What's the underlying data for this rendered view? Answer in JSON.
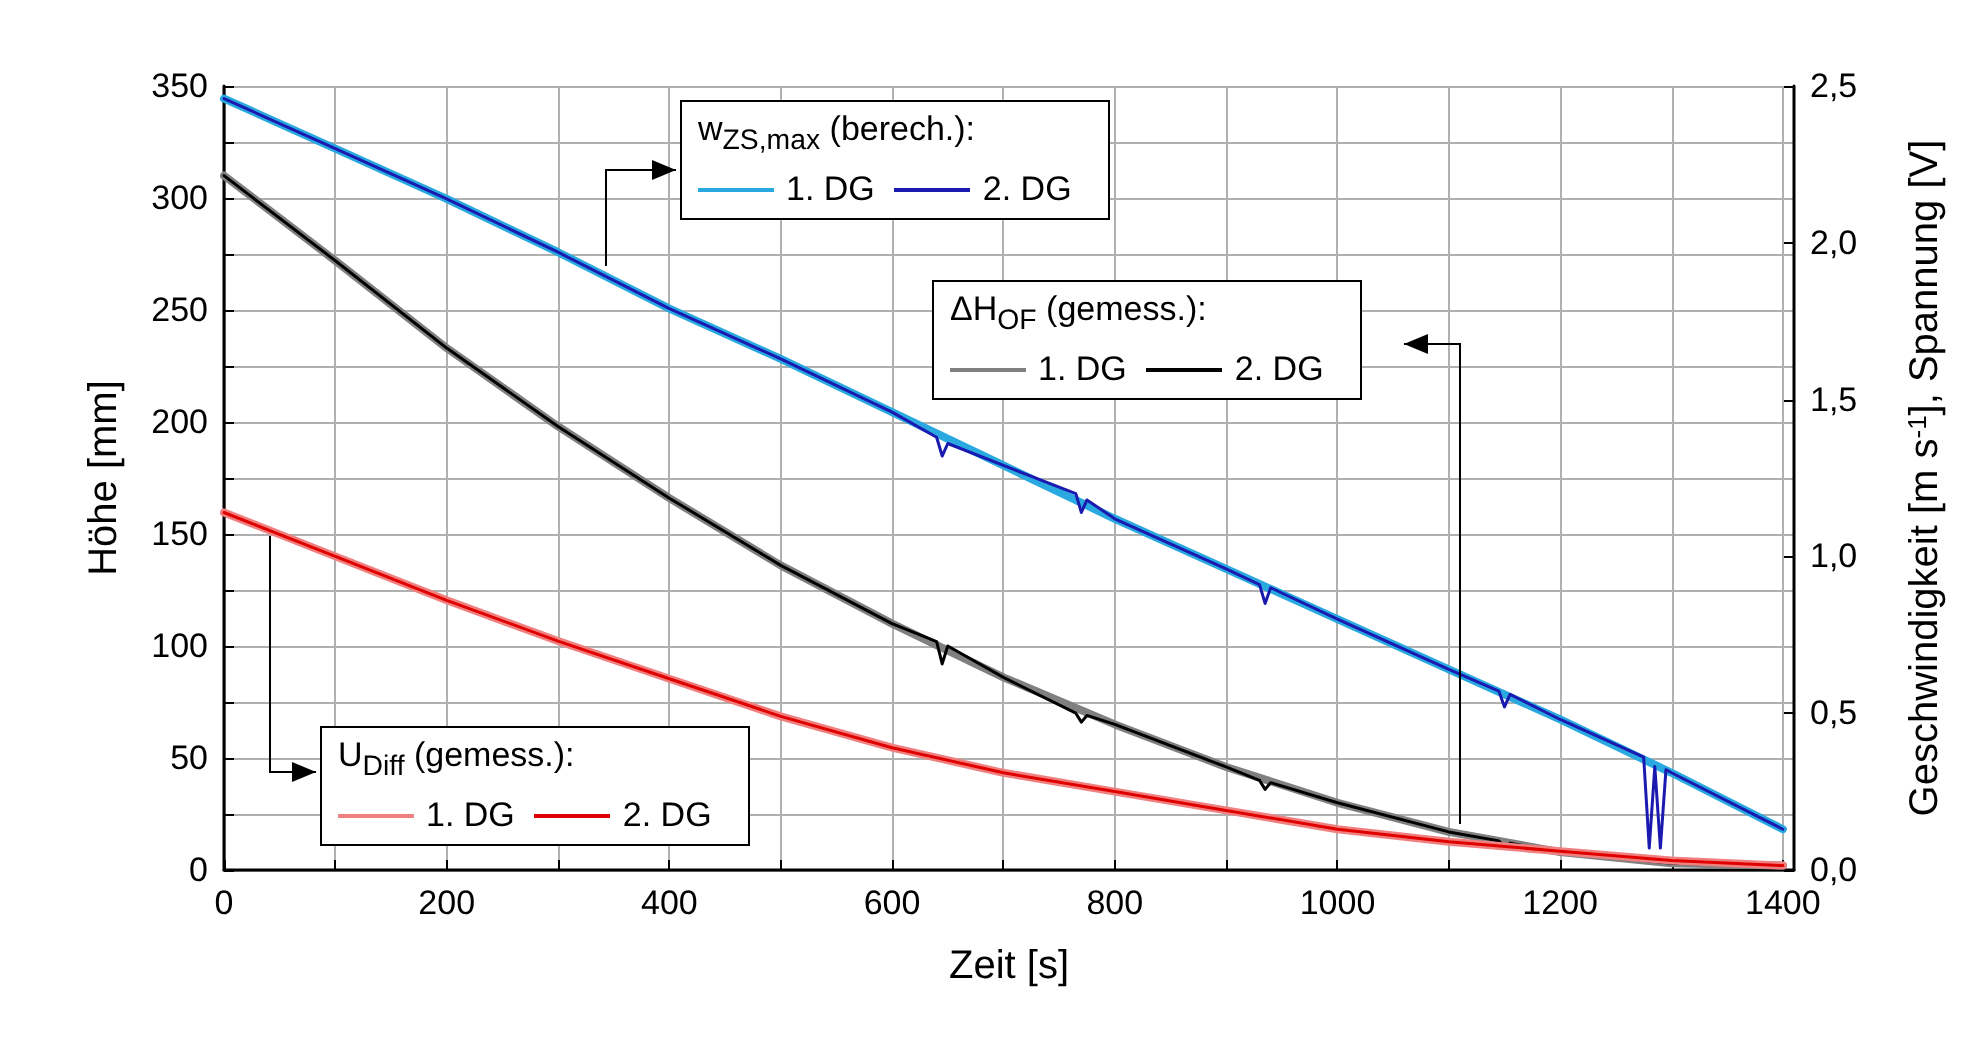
{
  "chart_data": {
    "type": "line",
    "xlabel": "Zeit [s]",
    "ylabel": "Höhe [mm]",
    "y2label": "Geschwindigkeit [m s$^{-1}$], Spannung [V]",
    "annotations": [
      "w$_{ZS,max}$ (berech.):",
      "ΔH$_{OF}$ (gemess.):",
      "U$_{Diff}$ (gemess.):"
    ],
    "xlim": [
      0,
      1410
    ],
    "xticks": [
      0,
      {
        "value": 100,
        "label": null
      },
      200,
      {
        "value": 300,
        "label": null
      },
      400,
      {
        "value": 500,
        "label": null
      },
      600,
      {
        "value": 700,
        "label": null
      },
      800,
      {
        "value": 900,
        "label": null
      },
      1000,
      {
        "value": 1100,
        "label": null
      },
      1200,
      {
        "value": 1300,
        "label": null
      },
      1400
    ],
    "ylim": [
      0,
      350
    ],
    "yticks": [
      0,
      {
        "value": 25,
        "label": null
      },
      50,
      {
        "value": 75,
        "label": null
      },
      100,
      {
        "value": 125,
        "label": null
      },
      150,
      {
        "value": 175,
        "label": null
      },
      200,
      {
        "value": 225,
        "label": null
      },
      250,
      {
        "value": 275,
        "label": null
      },
      300,
      {
        "value": 325,
        "label": null
      },
      350
    ],
    "y2lim": [
      0,
      2.5
    ],
    "y2ticks": [
      {
        "value": 0,
        "label": "0,0"
      },
      {
        "value": 0.5,
        "label": "0,5"
      },
      {
        "value": 1,
        "label": "1,0"
      },
      {
        "value": 1.5,
        "label": "1,5"
      },
      {
        "value": 2,
        "label": "2,0"
      },
      {
        "value": 2.5,
        "label": "2,5"
      }
    ],
    "grid": true,
    "legend": "bottom left",
    "marker": "none",
    "line_style": "solid",
    "series": [
      {
        "name": "1. DG",
        "color": "#29a9e0",
        "axis": "y2",
        "x": [
          0,
          100,
          200,
          300,
          400,
          500,
          600,
          700,
          800,
          900,
          1000,
          1100,
          1200,
          1300,
          1400
        ],
        "values": [
          2.46,
          2.3,
          2.14,
          1.97,
          1.79,
          1.63,
          1.46,
          1.29,
          1.12,
          0.96,
          0.8,
          0.64,
          0.48,
          0.31,
          0.13
        ]
      },
      {
        "name": "2. DG",
        "color": "#1a1ab0",
        "axis": "y2",
        "x": [
          0,
          100,
          200,
          300,
          400,
          500,
          600,
          640,
          645,
          650,
          700,
          765,
          770,
          775,
          800,
          900,
          930,
          935,
          940,
          1000,
          1100,
          1145,
          1150,
          1155,
          1200,
          1275,
          1280,
          1285,
          1290,
          1295,
          1300,
          1400
        ],
        "values": [
          2.46,
          2.3,
          2.14,
          1.97,
          1.79,
          1.63,
          1.46,
          1.38,
          1.32,
          1.36,
          1.29,
          1.2,
          1.14,
          1.18,
          1.12,
          0.96,
          0.91,
          0.85,
          0.9,
          0.8,
          0.64,
          0.57,
          0.52,
          0.56,
          0.48,
          0.36,
          0.07,
          0.33,
          0.07,
          0.32,
          0.31,
          0.13
        ]
      },
      {
        "name": "1. DG",
        "color": "#808080",
        "x": [
          0,
          100,
          200,
          300,
          400,
          500,
          600,
          700,
          800,
          900,
          1000,
          1100,
          1200,
          1300,
          1400
        ],
        "values": [
          310,
          272,
          233,
          198,
          166,
          136,
          110,
          86,
          65,
          46,
          30,
          17,
          8,
          3,
          2
        ]
      },
      {
        "name": "2. DG",
        "color": "#000000",
        "x": [
          0,
          100,
          200,
          300,
          400,
          500,
          600,
          640,
          645,
          650,
          700,
          765,
          770,
          775,
          800,
          900,
          930,
          935,
          940,
          1000,
          1100,
          1145,
          1150,
          1155,
          1200,
          1300,
          1400
        ],
        "values": [
          310,
          272,
          233,
          198,
          166,
          136,
          110,
          102,
          92,
          100,
          86,
          70,
          66,
          69,
          65,
          46,
          40,
          36,
          39,
          30,
          17,
          13,
          10,
          12,
          8,
          3,
          2
        ]
      },
      {
        "name": "1. DG",
        "color": "#f08080",
        "axis": "y2",
        "x": [
          0,
          100,
          200,
          300,
          400,
          500,
          600,
          700,
          800,
          900,
          1000,
          1100,
          1200,
          1300,
          1400
        ],
        "values": [
          1.14,
          1.0,
          0.86,
          0.73,
          0.61,
          0.49,
          0.39,
          0.31,
          0.25,
          0.19,
          0.13,
          0.09,
          0.06,
          0.03,
          0.014
        ]
      },
      {
        "name": "2. DG",
        "color": "#e00000",
        "axis": "y2",
        "x": [
          0,
          100,
          200,
          300,
          400,
          500,
          600,
          700,
          800,
          900,
          1000,
          1100,
          1200,
          1300,
          1400
        ],
        "values": [
          1.14,
          1.0,
          0.86,
          0.73,
          0.61,
          0.49,
          0.39,
          0.31,
          0.25,
          0.19,
          0.13,
          0.09,
          0.06,
          0.03,
          0.014
        ]
      }
    ]
  }
}
